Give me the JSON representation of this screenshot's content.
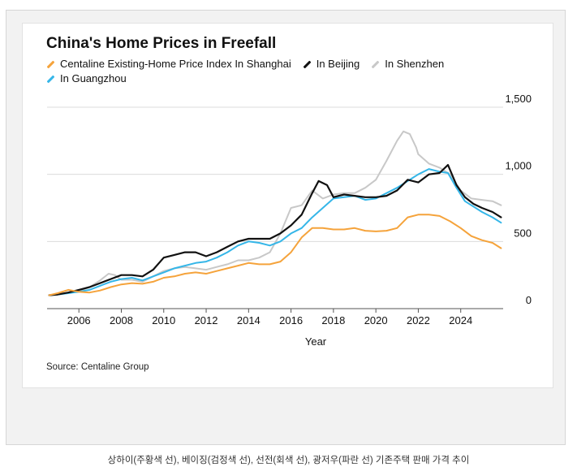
{
  "caption": "상하이(주황색 선), 베이징(검정색 선), 선전(회색 선), 광저우(파란 선) 기존주택 판매 가격 추이",
  "source": "Source: Centaline Group",
  "chart_data": {
    "type": "line",
    "title": "China's Home Prices in Freefall",
    "xlabel": "Year",
    "ylabel": "",
    "xlim": [
      2004.5,
      2026.0
    ],
    "ylim": [
      0,
      1500
    ],
    "y_axis_side": "right",
    "xticks": [
      2006,
      2008,
      2010,
      2012,
      2014,
      2016,
      2018,
      2020,
      2022,
      2024
    ],
    "yticks": [
      0,
      500,
      1000,
      1500
    ],
    "ytick_labels": [
      "0",
      "500",
      "1,000",
      "1,500"
    ],
    "grid": "horizontal",
    "legend_position": "top-left",
    "series": [
      {
        "name": "In Shenzhen",
        "color": "#c8c8c8",
        "x": [
          2004.6,
          2005.0,
          2005.5,
          2006.0,
          2006.5,
          2007.0,
          2007.4,
          2007.7,
          2008.0,
          2008.5,
          2009.0,
          2009.5,
          2010.0,
          2010.5,
          2011.0,
          2011.5,
          2012.0,
          2012.5,
          2013.0,
          2013.5,
          2014.0,
          2014.5,
          2015.0,
          2015.5,
          2016.0,
          2016.5,
          2017.0,
          2017.5,
          2018.0,
          2018.5,
          2019.0,
          2019.5,
          2020.0,
          2020.5,
          2021.0,
          2021.3,
          2021.6,
          2021.9,
          2022.0,
          2022.5,
          2023.0,
          2023.5,
          2024.0,
          2024.5,
          2025.0,
          2025.5,
          2025.9
        ],
        "values": [
          100,
          105,
          120,
          130,
          160,
          210,
          260,
          250,
          215,
          215,
          200,
          240,
          280,
          300,
          310,
          300,
          290,
          310,
          330,
          360,
          360,
          380,
          420,
          560,
          750,
          770,
          880,
          820,
          850,
          860,
          860,
          900,
          960,
          1100,
          1250,
          1320,
          1300,
          1200,
          1150,
          1080,
          1050,
          1000,
          880,
          820,
          810,
          800,
          770
        ]
      },
      {
        "name": "In Guangzhou",
        "color": "#35b6e8",
        "x": [
          2004.6,
          2005.0,
          2005.5,
          2006.0,
          2006.5,
          2007.0,
          2007.5,
          2008.0,
          2008.5,
          2009.0,
          2009.5,
          2010.0,
          2010.5,
          2011.0,
          2011.5,
          2012.0,
          2012.5,
          2013.0,
          2013.5,
          2014.0,
          2014.5,
          2015.0,
          2015.5,
          2016.0,
          2016.5,
          2017.0,
          2017.5,
          2018.0,
          2018.5,
          2019.0,
          2019.5,
          2020.0,
          2020.5,
          2021.0,
          2021.5,
          2022.0,
          2022.5,
          2023.0,
          2023.4,
          2023.8,
          2024.2,
          2024.6,
          2025.0,
          2025.5,
          2025.9
        ],
        "values": [
          100,
          105,
          115,
          125,
          140,
          170,
          200,
          220,
          230,
          210,
          240,
          270,
          300,
          320,
          340,
          350,
          380,
          420,
          470,
          500,
          490,
          470,
          500,
          560,
          600,
          680,
          750,
          820,
          830,
          840,
          810,
          820,
          860,
          900,
          950,
          1000,
          1040,
          1020,
          1010,
          900,
          800,
          760,
          720,
          680,
          640
        ]
      },
      {
        "name": "In Beijing",
        "color": "#111111",
        "x": [
          2004.6,
          2005.0,
          2005.5,
          2006.0,
          2006.5,
          2007.0,
          2007.5,
          2008.0,
          2008.5,
          2009.0,
          2009.5,
          2010.0,
          2010.5,
          2011.0,
          2011.5,
          2012.0,
          2012.5,
          2013.0,
          2013.5,
          2014.0,
          2014.5,
          2015.0,
          2015.5,
          2016.0,
          2016.5,
          2017.0,
          2017.3,
          2017.7,
          2018.0,
          2018.5,
          2019.0,
          2019.5,
          2020.0,
          2020.5,
          2021.0,
          2021.5,
          2022.0,
          2022.5,
          2023.0,
          2023.4,
          2023.8,
          2024.2,
          2024.6,
          2025.0,
          2025.5,
          2025.9
        ],
        "values": [
          100,
          105,
          120,
          140,
          160,
          190,
          220,
          250,
          250,
          240,
          290,
          380,
          400,
          420,
          420,
          390,
          420,
          460,
          500,
          520,
          520,
          520,
          560,
          620,
          700,
          860,
          950,
          920,
          830,
          850,
          840,
          830,
          830,
          840,
          880,
          960,
          940,
          1000,
          1010,
          1070,
          920,
          830,
          780,
          750,
          720,
          680
        ]
      },
      {
        "name": "Centaline Existing-Home Price Index In Shanghai",
        "color": "#f5a33b",
        "x": [
          2004.6,
          2005.0,
          2005.5,
          2006.0,
          2006.5,
          2007.0,
          2007.5,
          2008.0,
          2008.5,
          2009.0,
          2009.5,
          2010.0,
          2010.5,
          2011.0,
          2011.5,
          2012.0,
          2012.5,
          2013.0,
          2013.5,
          2014.0,
          2014.5,
          2015.0,
          2015.5,
          2016.0,
          2016.5,
          2017.0,
          2017.5,
          2018.0,
          2018.5,
          2019.0,
          2019.5,
          2020.0,
          2020.5,
          2021.0,
          2021.5,
          2022.0,
          2022.5,
          2023.0,
          2023.5,
          2024.0,
          2024.5,
          2025.0,
          2025.5,
          2025.9
        ],
        "values": [
          100,
          115,
          140,
          125,
          120,
          135,
          160,
          180,
          190,
          185,
          200,
          230,
          240,
          260,
          270,
          260,
          280,
          300,
          320,
          340,
          330,
          330,
          350,
          420,
          530,
          600,
          600,
          590,
          590,
          600,
          580,
          575,
          580,
          600,
          680,
          700,
          700,
          690,
          650,
          600,
          540,
          510,
          490,
          450
        ]
      }
    ]
  }
}
